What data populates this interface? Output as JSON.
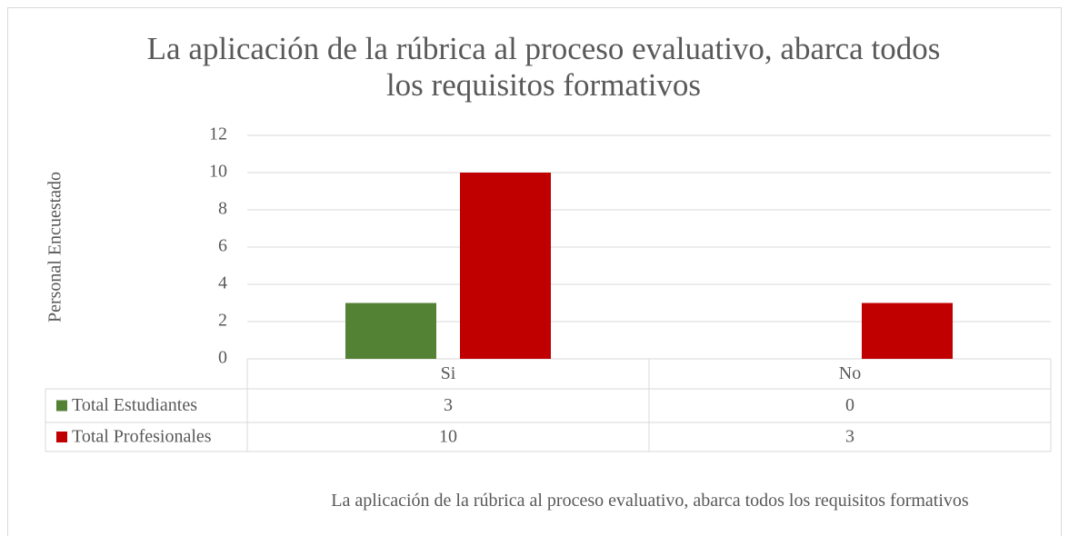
{
  "chart_data": {
    "type": "bar",
    "title": "La aplicación de la rúbrica al proceso evaluativo, abarca todos los requisitos formativos",
    "y_label": "Personal Encuestado",
    "x_label": "La aplicación de la rúbrica al proceso evaluativo, abarca todos los requisitos formativos",
    "categories": [
      "Si",
      "No"
    ],
    "series": [
      {
        "name": "Total Estudiantes",
        "color": "#548235",
        "values": [
          3,
          0
        ]
      },
      {
        "name": "Total Profesionales",
        "color": "#c00000",
        "values": [
          10,
          3
        ]
      }
    ],
    "ylim": [
      0,
      12
    ],
    "yticks": [
      0,
      2,
      4,
      6,
      8,
      10,
      12
    ],
    "grid": true,
    "data_table": true
  }
}
